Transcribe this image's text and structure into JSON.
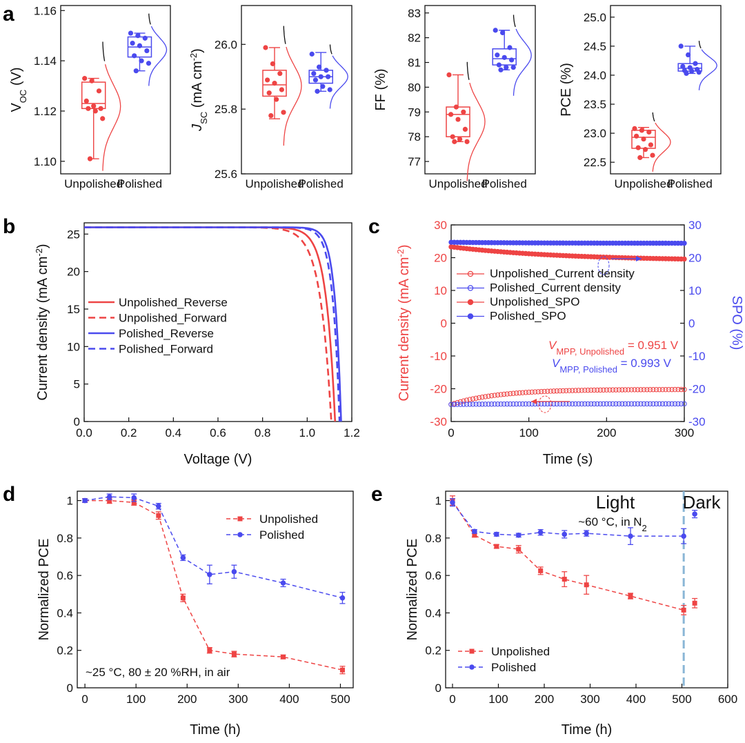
{
  "colors": {
    "red": "#ee4444",
    "blue": "#4a4aee",
    "dark": "#111111",
    "dash_line": "#8ab6d6"
  },
  "panel_a": {
    "label": "a",
    "categories": [
      "Unpolished",
      "Polished"
    ],
    "plots": [
      {
        "ylabel_main": "V",
        "ylabel_sub": "OC",
        "ylabel_unit": " (V)",
        "ylim": [
          1.095,
          1.162
        ],
        "ticks": [
          "1.10",
          "1.12",
          "1.14",
          "1.16"
        ],
        "unpolished": {
          "q1": 1.121,
          "median": 1.123,
          "q3": 1.1315,
          "whisker_low": 1.101,
          "whisker_high": 1.133,
          "points": [
            1.133,
            1.132,
            1.128,
            1.124,
            1.122,
            1.121,
            1.121,
            1.12,
            1.117,
            1.101
          ]
        },
        "polished": {
          "q1": 1.1415,
          "median": 1.1455,
          "q3": 1.1495,
          "whisker_low": 1.136,
          "whisker_high": 1.151,
          "points": [
            1.151,
            1.15,
            1.149,
            1.147,
            1.146,
            1.144,
            1.142,
            1.14,
            1.139,
            1.136
          ]
        }
      },
      {
        "ylabel_main": "J",
        "ylabel_sub": "SC",
        "ylabel_unit": " (mA cm",
        "ylabel_sup": "-2",
        "ylabel_close": ")",
        "ylim": [
          25.6,
          26.12
        ],
        "ticks": [
          "25.6",
          "25.8",
          "26.0"
        ],
        "unpolished": {
          "q1": 25.84,
          "median": 25.875,
          "q3": 25.92,
          "whisker_low": 25.77,
          "whisker_high": 25.99,
          "points": [
            25.99,
            25.94,
            25.91,
            25.89,
            25.88,
            25.86,
            25.85,
            25.83,
            25.79,
            25.78
          ]
        },
        "polished": {
          "q1": 25.88,
          "median": 25.9,
          "q3": 25.92,
          "whisker_low": 25.855,
          "whisker_high": 25.975,
          "points": [
            25.97,
            25.93,
            25.92,
            25.91,
            25.9,
            25.9,
            25.89,
            25.87,
            25.86,
            25.855
          ]
        }
      },
      {
        "ylabel_main": "FF (%)",
        "ylim": [
          76.5,
          83.3
        ],
        "ticks": [
          "77",
          "78",
          "79",
          "80",
          "81",
          "82",
          "83"
        ],
        "unpolished": {
          "q1": 78.0,
          "median": 78.9,
          "q3": 79.2,
          "whisker_low": 77.8,
          "whisker_high": 80.5,
          "points": [
            80.5,
            79.2,
            79.0,
            78.9,
            78.7,
            78.3,
            78.0,
            77.9,
            77.8,
            77.8
          ]
        },
        "polished": {
          "q1": 80.9,
          "median": 81.15,
          "q3": 81.55,
          "whisker_low": 80.7,
          "whisker_high": 82.3,
          "points": [
            82.3,
            82.2,
            81.6,
            81.3,
            81.2,
            81.1,
            80.9,
            80.8,
            80.8,
            80.7
          ]
        }
      },
      {
        "ylabel_main": "PCE (%)",
        "ylim": [
          22.3,
          25.2
        ],
        "ticks": [
          "22.5",
          "23.0",
          "23.5",
          "24.0",
          "24.5",
          "25.0"
        ],
        "unpolished": {
          "q1": 22.74,
          "median": 22.93,
          "q3": 23.05,
          "whisker_low": 22.58,
          "whisker_high": 23.1,
          "points": [
            23.08,
            23.05,
            23.02,
            22.95,
            22.9,
            22.8,
            22.75,
            22.72,
            22.62,
            22.58
          ]
        },
        "polished": {
          "q1": 24.07,
          "median": 24.12,
          "q3": 24.2,
          "whisker_low": 24.03,
          "whisker_high": 24.5,
          "points": [
            24.5,
            24.35,
            24.2,
            24.15,
            24.13,
            24.1,
            24.08,
            24.07,
            24.05,
            24.03
          ]
        }
      }
    ]
  },
  "chart_data": [
    {
      "type": "line",
      "panel": "b",
      "xlabel": "Voltage (V)",
      "ylabel": "Current density (mA cm",
      "ylabel_sup": "-2",
      "ylabel_close": ")",
      "xlim": [
        0,
        1.2
      ],
      "ylim": [
        0,
        26.5
      ],
      "xticks": [
        "0.0",
        "0.2",
        "0.4",
        "0.6",
        "0.8",
        "1.0",
        "1.2"
      ],
      "yticks": [
        "0",
        "5",
        "10",
        "15",
        "20",
        "25"
      ],
      "legend": "center-left",
      "series": [
        {
          "name": "Unpolished_Reverse",
          "color": "red",
          "dash": false,
          "jsc": 25.9,
          "voc": 1.125,
          "knee": 0.86,
          "shape": 8.0
        },
        {
          "name": "Unpolished_Forward",
          "color": "red",
          "dash": true,
          "jsc": 25.9,
          "voc": 1.108,
          "knee": 0.82,
          "shape": 7.0
        },
        {
          "name": "Polished_Reverse",
          "color": "blue",
          "dash": false,
          "jsc": 25.9,
          "voc": 1.152,
          "knee": 0.93,
          "shape": 10.0
        },
        {
          "name": "Polished_Forward",
          "color": "blue",
          "dash": true,
          "jsc": 25.9,
          "voc": 1.145,
          "knee": 0.91,
          "shape": 9.5
        }
      ]
    },
    {
      "type": "scatter",
      "panel": "c",
      "xlabel": "Time (s)",
      "ylabel_left": "Current density (mA cm",
      "ylabel_left_sup": "-2",
      "ylabel_left_close": ")",
      "ylabel_right": "SPO (%)",
      "xlim": [
        0,
        300
      ],
      "ylim_left": [
        -30,
        30
      ],
      "ylim_right": [
        -30,
        30
      ],
      "xticks": [
        "0",
        "100",
        "200",
        "300"
      ],
      "yticks": [
        "-30",
        "-20",
        "-10",
        "0",
        "10",
        "20",
        "30"
      ],
      "series": [
        {
          "name": "Unpolished_Current density",
          "color": "red",
          "filled": false,
          "start": -24.8,
          "end": -20.2,
          "rate": 60
        },
        {
          "name": "Polished_Current density",
          "color": "blue",
          "filled": false,
          "start": -24.8,
          "end": -24.6,
          "rate": 60
        },
        {
          "name": "Unpolished_SPO",
          "color": "red",
          "filled": true,
          "start": 23.3,
          "end": 19.0,
          "rate": 150
        },
        {
          "name": "Polished_SPO",
          "color": "blue",
          "filled": true,
          "start": 24.7,
          "end": 24.4,
          "rate": 100
        }
      ],
      "annotations": {
        "vmpp_unpolished": {
          "v": "V",
          "sub": "MPP, Unpolished",
          "value": " = 0.951 V"
        },
        "vmpp_polished": {
          "v": "V",
          "sub": "MPP, Polished",
          "value": " = 0.993 V"
        }
      }
    },
    {
      "type": "line",
      "panel": "d",
      "xlabel": "Time (h)",
      "ylabel": "Normalized PCE",
      "xlim": [
        -15,
        525
      ],
      "ylim": [
        0,
        1.05
      ],
      "xticks": [
        "0",
        "100",
        "200",
        "300",
        "400",
        "500"
      ],
      "yticks": [
        "0",
        "0.2",
        "0.4",
        "0.6",
        "0.8",
        "1"
      ],
      "legend": "top-right",
      "annotation": "~25 °C, 80 ± 20 %RH, in air",
      "series": [
        {
          "name": "Unpolished",
          "color": "red",
          "marker": "square",
          "x": [
            0,
            48,
            96,
            144,
            192,
            244,
            292,
            388,
            504
          ],
          "y": [
            1.0,
            1.0,
            0.99,
            0.92,
            0.48,
            0.2,
            0.18,
            0.165,
            0.095
          ],
          "err": [
            0.01,
            0.015,
            0.015,
            0.02,
            0.02,
            0.015,
            0.015,
            0.01,
            0.02
          ]
        },
        {
          "name": "Polished",
          "color": "blue",
          "marker": "circle",
          "x": [
            0,
            48,
            96,
            144,
            192,
            244,
            292,
            388,
            504
          ],
          "y": [
            1.0,
            1.02,
            1.015,
            0.97,
            0.695,
            0.605,
            0.62,
            0.56,
            0.48
          ],
          "err": [
            0.01,
            0.015,
            0.02,
            0.015,
            0.015,
            0.05,
            0.035,
            0.02,
            0.03
          ]
        }
      ]
    },
    {
      "type": "line",
      "panel": "e",
      "xlabel": "Time (h)",
      "ylabel": "Normalized PCE",
      "xlim": [
        -15,
        600
      ],
      "ylim": [
        0,
        1.05
      ],
      "xticks": [
        "0",
        "100",
        "200",
        "300",
        "400",
        "500",
        "600"
      ],
      "yticks": [
        "0",
        "0.2",
        "0.4",
        "0.6",
        "0.8",
        "1"
      ],
      "legend": "bottom-left",
      "divider_x": 504,
      "region_left": "Light",
      "region_right": "Dark",
      "condition": "~60 °C, in N",
      "condition_sub": "2",
      "series": [
        {
          "name": "Unpolished",
          "color": "red",
          "marker": "square",
          "x": [
            0,
            48,
            96,
            144,
            192,
            244,
            292,
            388,
            504
          ],
          "y": [
            1.0,
            0.815,
            0.755,
            0.74,
            0.625,
            0.58,
            0.55,
            0.49,
            0.415
          ],
          "err": [
            0.025,
            0.01,
            0.01,
            0.02,
            0.02,
            0.04,
            0.05,
            0.015,
            0.025
          ],
          "extra": {
            "x": 528,
            "y": 0.452,
            "err": 0.025
          }
        },
        {
          "name": "Polished",
          "color": "blue",
          "marker": "circle",
          "x": [
            0,
            48,
            96,
            144,
            192,
            244,
            292,
            388,
            504
          ],
          "y": [
            0.99,
            0.835,
            0.82,
            0.815,
            0.83,
            0.82,
            0.825,
            0.81,
            0.81
          ],
          "err": [
            0.02,
            0.01,
            0.01,
            0.01,
            0.015,
            0.02,
            0.015,
            0.045,
            0.04
          ],
          "extra": {
            "x": 528,
            "y": 0.928,
            "err": 0.02
          }
        }
      ]
    }
  ],
  "panel_labels": {
    "b": "b",
    "c": "c",
    "d": "d",
    "e": "e"
  }
}
